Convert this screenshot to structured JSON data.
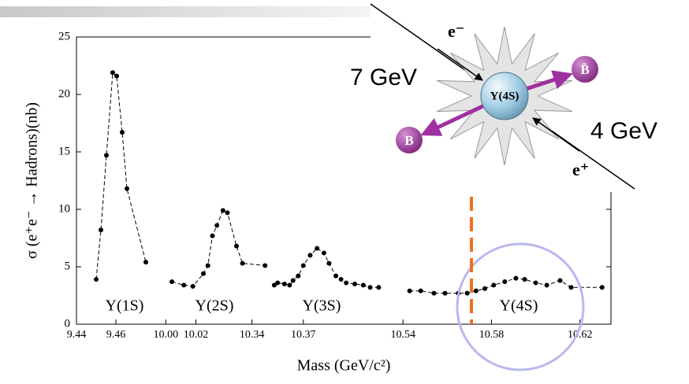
{
  "chart_data": {
    "type": "scatter",
    "ylabel": "σ (e⁺e⁻ → Hadrons)(nb)",
    "xlabel": "Mass (GeV/c²)",
    "ylim": [
      0,
      25
    ],
    "yticks": [
      0,
      5,
      10,
      15,
      20,
      25
    ],
    "color": "#000000",
    "line": "dashed",
    "panels": [
      {
        "label": "Υ(1S)",
        "xlim": [
          9.44,
          9.48
        ],
        "xticks": [
          9.44,
          9.46
        ],
        "x": [
          9.45,
          9.4524,
          9.4552,
          9.4584,
          9.4604,
          9.4632,
          9.4656,
          9.4752
        ],
        "values": [
          3.9,
          8.2,
          14.7,
          21.9,
          21.6,
          16.7,
          11.8,
          5.4
        ]
      },
      {
        "label": "Υ(2S)",
        "xlim": [
          9.993,
          10.068
        ],
        "xticks": [
          {
            "value": 10,
            "label": "10.00"
          },
          10.02
        ],
        "x": [
          10.004,
          10.012,
          10.018,
          10.025,
          10.028,
          10.031,
          10.034,
          10.038,
          10.041,
          10.047,
          10.051,
          10.066
        ],
        "values": [
          3.7,
          3.4,
          3.3,
          4.4,
          5.1,
          7.7,
          8.6,
          9.9,
          9.7,
          6.8,
          5.3,
          5.1
        ]
      },
      {
        "label": "Υ(3S)",
        "xlim": [
          10.331,
          10.423
        ],
        "xticks": [
          10.34,
          10.37
        ],
        "x": [
          10.353,
          10.355,
          10.359,
          10.362,
          10.364,
          10.367,
          10.37,
          10.374,
          10.378,
          10.382,
          10.385,
          10.389,
          10.392,
          10.395,
          10.4,
          10.405,
          10.409,
          10.414
        ],
        "values": [
          3.4,
          3.6,
          3.5,
          3.4,
          3.8,
          4.2,
          5.1,
          6.0,
          6.6,
          6.2,
          5.3,
          4.2,
          3.9,
          3.6,
          3.5,
          3.4,
          3.2,
          3.2
        ]
      },
      {
        "label": "Υ(4S)",
        "xlim": [
          10.536,
          10.634
        ],
        "xticks": [
          10.54,
          10.58,
          10.62
        ],
        "x": [
          10.543,
          10.548,
          10.554,
          10.559,
          10.565,
          10.569,
          10.573,
          10.577,
          10.581,
          10.586,
          10.591,
          10.595,
          10.6,
          10.605,
          10.611,
          10.616,
          10.63
        ],
        "values": [
          2.9,
          2.9,
          2.7,
          2.7,
          2.7,
          2.7,
          2.9,
          3.1,
          3.4,
          3.7,
          4.0,
          3.9,
          3.6,
          3.4,
          3.8,
          3.2,
          3.2
        ]
      }
    ]
  },
  "diagram": {
    "beam_minus": "e⁻",
    "beam_plus": "e⁺",
    "energy_minus": "7 GeV",
    "energy_plus": "4 GeV",
    "resonance": "Υ(4S)",
    "meson": "B",
    "antimeson": "B̄"
  }
}
